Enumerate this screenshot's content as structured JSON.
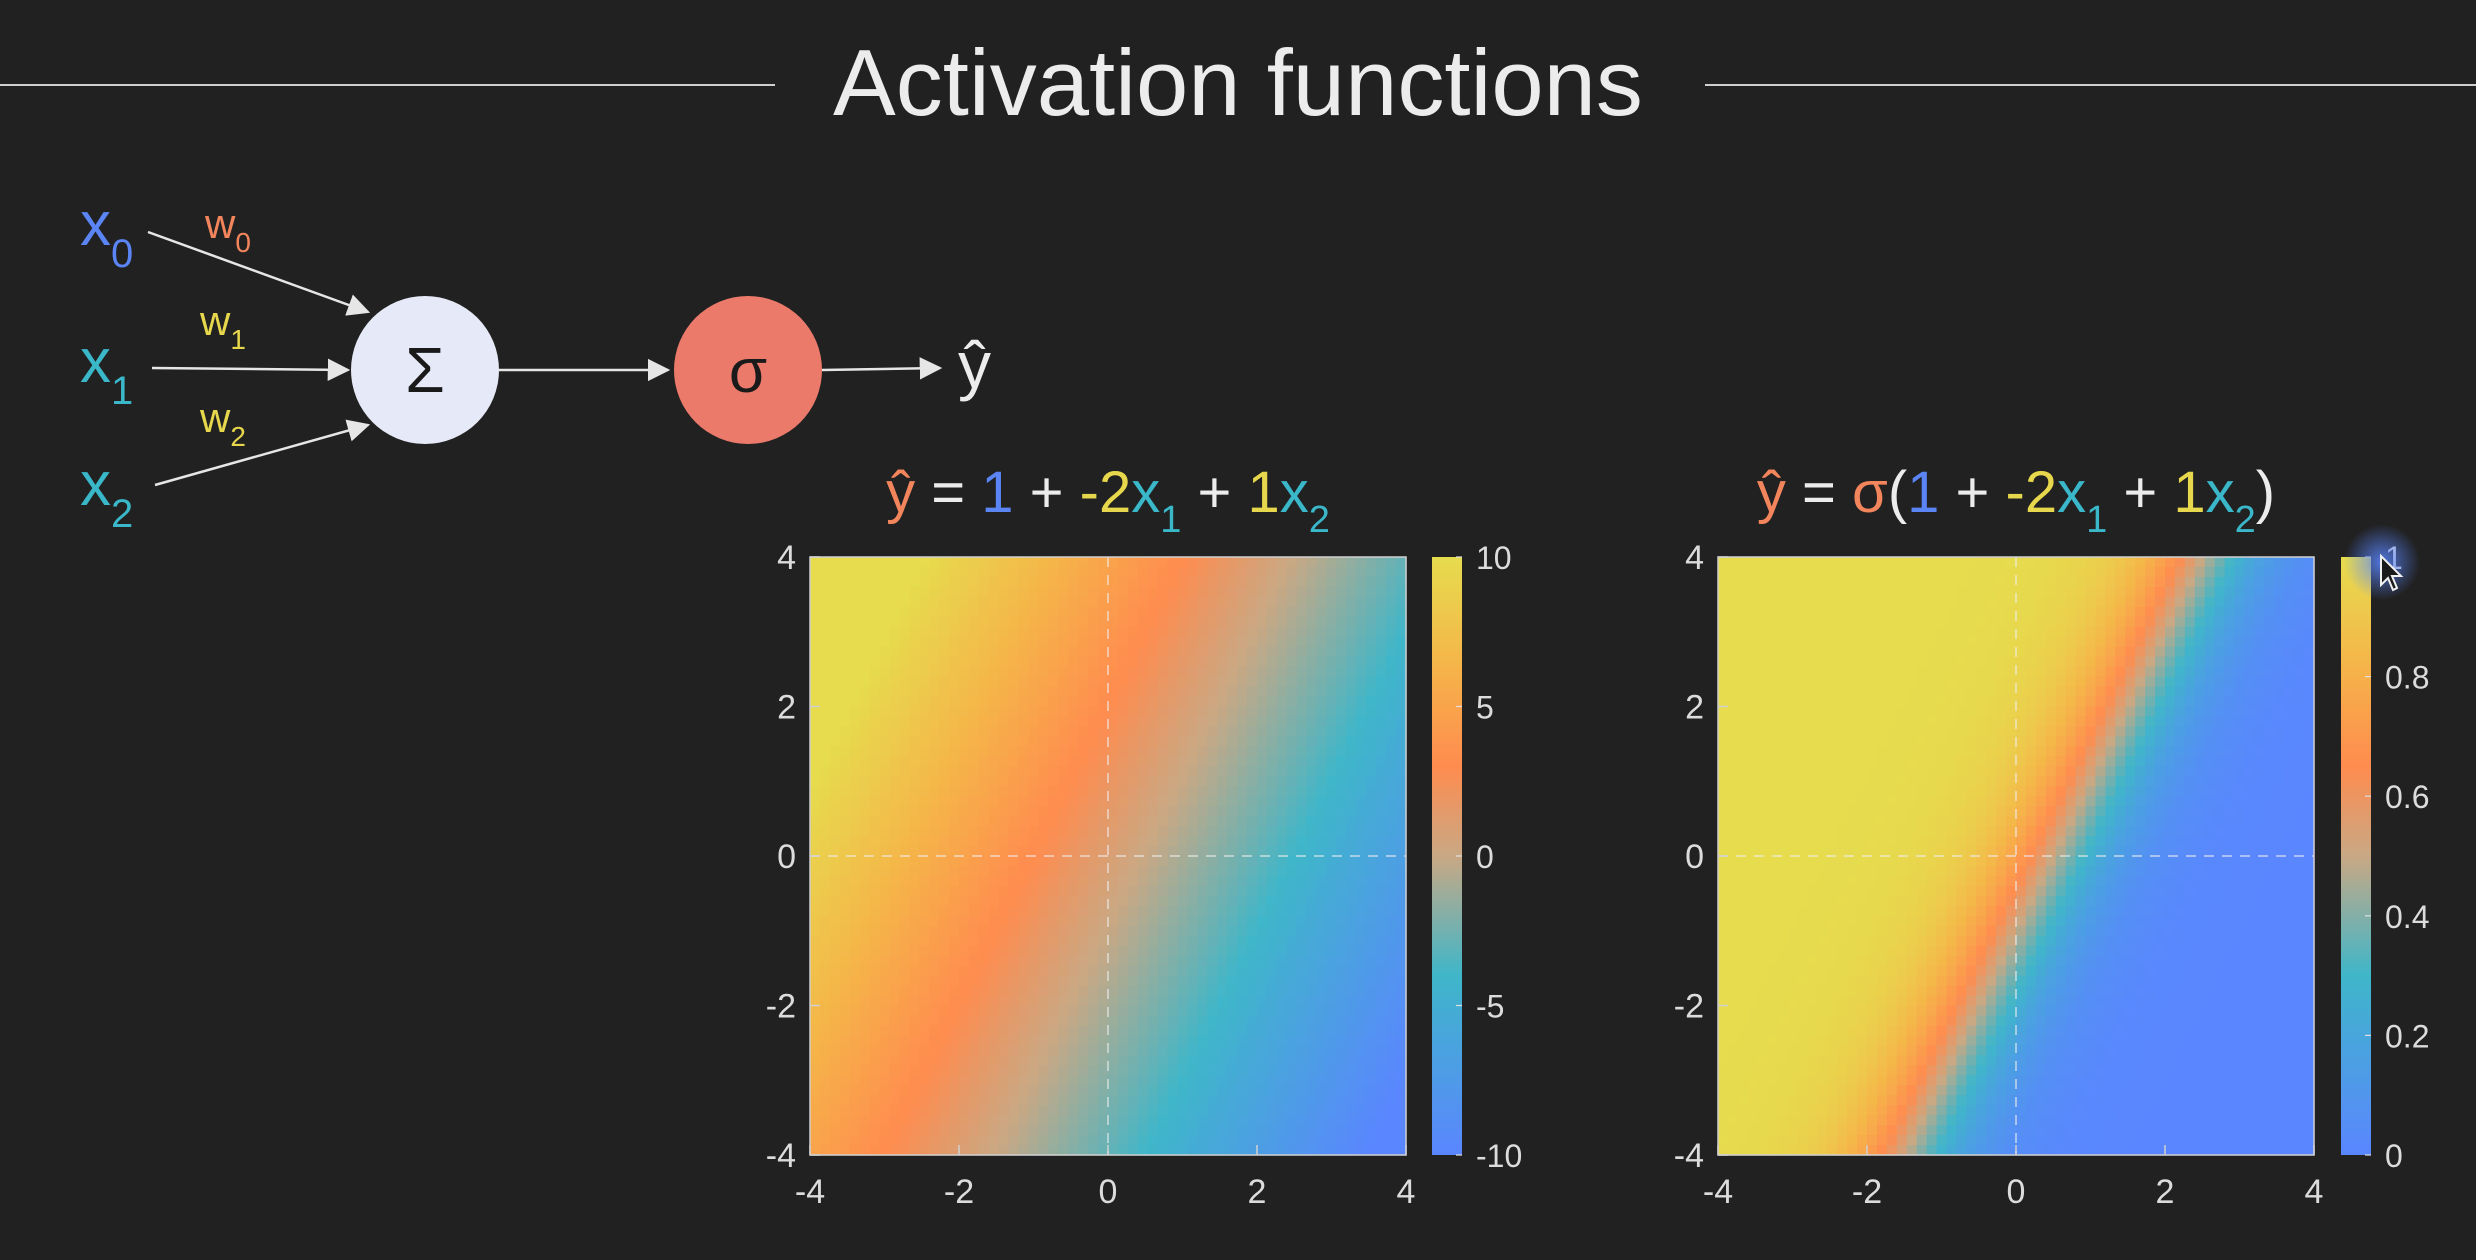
{
  "page": {
    "title": "Activation functions",
    "background": "#212121"
  },
  "colors": {
    "x0": "#5b84f5",
    "x1": "#3ab7c9",
    "x2": "#3ab7c9",
    "w0": "#f3855c",
    "w1": "#e7d74c",
    "w2": "#e7d74c",
    "bias": "#5b84f5",
    "coef": "#e7d74c",
    "yhat": "#f3855c",
    "sigma": "#f3855c",
    "sum_node_fill": "#e6e9f7",
    "sigma_node_fill": "#ec7a6a",
    "colormap": [
      "#5a86ff",
      "#3fb6c9",
      "#c9a884",
      "#ff8c4f",
      "#f5b549",
      "#e6dc4e"
    ]
  },
  "diagram": {
    "inputs": [
      {
        "base": "x",
        "sub": "0",
        "color_key": "x0"
      },
      {
        "base": "x",
        "sub": "1",
        "color_key": "x1"
      },
      {
        "base": "x",
        "sub": "2",
        "color_key": "x2"
      }
    ],
    "weights": [
      {
        "base": "w",
        "sub": "0",
        "color_key": "w0"
      },
      {
        "base": "w",
        "sub": "1",
        "color_key": "w1"
      },
      {
        "base": "w",
        "sub": "2",
        "color_key": "w2"
      }
    ],
    "sum_symbol": "Σ",
    "activation_symbol": "σ",
    "output_symbol": "ŷ",
    "sum_icon": "sigma-sum-icon",
    "activation_icon": "sigmoid-node-icon"
  },
  "chart_data": [
    {
      "type": "heatmap",
      "title": "ŷ = 1 + -2x1 + 1x2",
      "function": "linear",
      "formula": {
        "intercept": 1,
        "w1": -2,
        "w2": 1
      },
      "x_range": [
        -4,
        4
      ],
      "y_range": [
        -4,
        4
      ],
      "xticks": [
        -4,
        -2,
        0,
        2,
        4
      ],
      "yticks": [
        -4,
        -2,
        0,
        2,
        4
      ],
      "crosshair_at_zero": true,
      "color_range": [
        -10,
        10
      ],
      "colorbar_ticks": [
        "10",
        "5",
        "0",
        "-5",
        "-10"
      ],
      "colorbar_values": [
        10,
        5,
        0,
        -5,
        -10
      ]
    },
    {
      "type": "heatmap",
      "title": "ŷ = σ(1 + -2x1 + 1x2)",
      "function": "sigmoid",
      "formula": {
        "intercept": 1,
        "w1": -2,
        "w2": 1
      },
      "x_range": [
        -4,
        4
      ],
      "y_range": [
        -4,
        4
      ],
      "xticks": [
        -4,
        -2,
        0,
        2,
        4
      ],
      "yticks": [
        -4,
        -2,
        0,
        2,
        4
      ],
      "crosshair_at_zero": true,
      "color_range": [
        0,
        1
      ],
      "colorbar_ticks": [
        "1",
        "0.8",
        "0.6",
        "0.4",
        "0.2",
        "0"
      ],
      "colorbar_values": [
        1,
        0.8,
        0.6,
        0.4,
        0.2,
        0
      ]
    }
  ],
  "cursor": {
    "icon": "mouse-pointer-icon"
  }
}
